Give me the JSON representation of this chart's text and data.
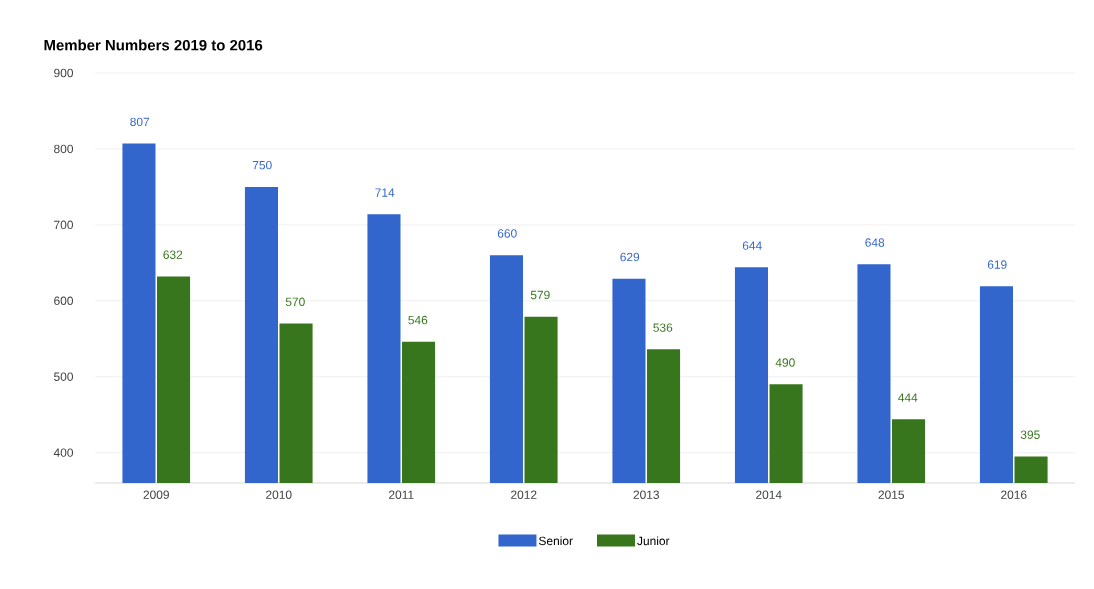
{
  "chart_data": {
    "type": "bar",
    "title": "Member Numbers 2019 to 2016",
    "categories": [
      "2009",
      "2010",
      "2011",
      "2012",
      "2013",
      "2014",
      "2015",
      "2016"
    ],
    "series": [
      {
        "name": "Senior",
        "color": "#3366cc",
        "values": [
          807,
          750,
          714,
          660,
          629,
          644,
          648,
          619
        ]
      },
      {
        "name": "Junior",
        "color": "#38761d",
        "values": [
          632,
          570,
          546,
          579,
          536,
          490,
          444,
          395
        ]
      }
    ],
    "ylim": [
      360,
      900
    ],
    "yticks": [
      400,
      500,
      600,
      700,
      800,
      900
    ],
    "grid": "y",
    "legend": "bottom",
    "data_labels": true
  }
}
